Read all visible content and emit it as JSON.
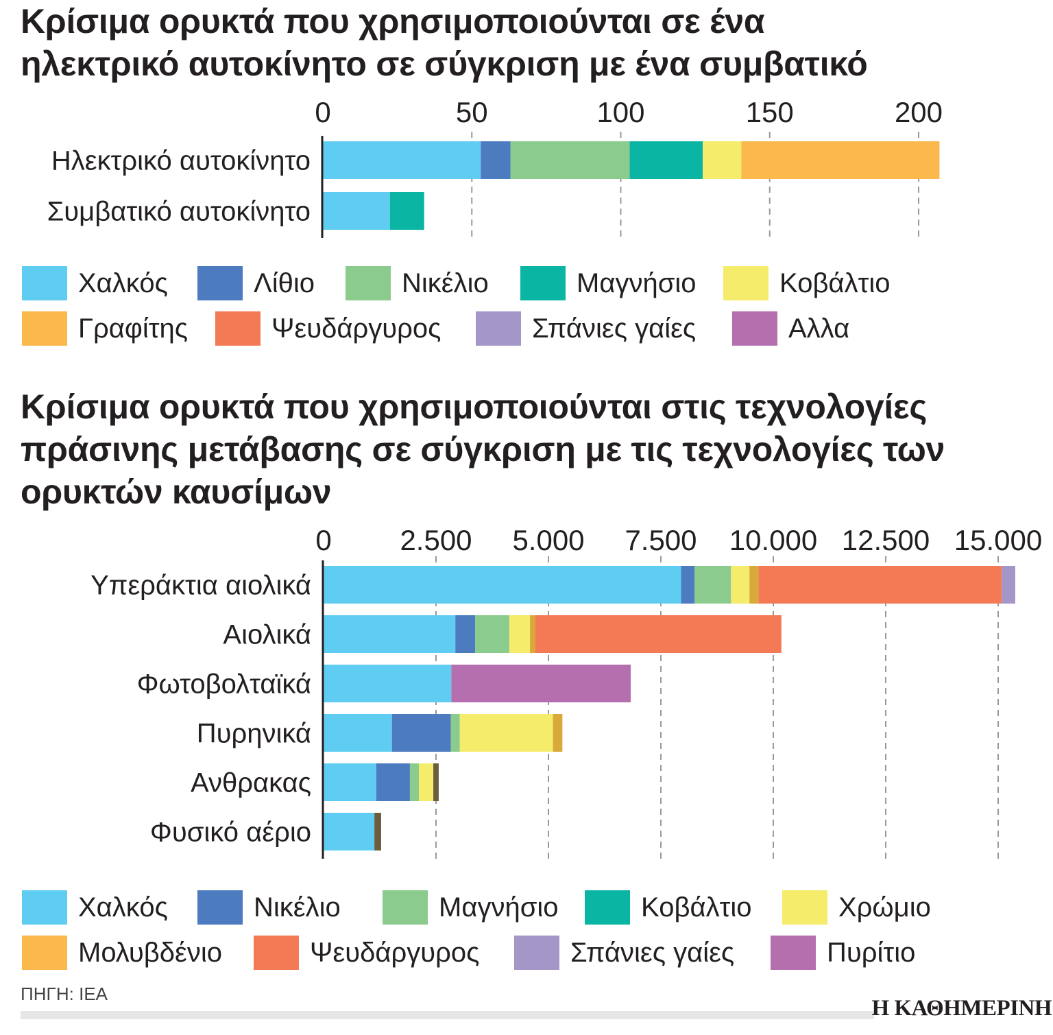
{
  "chart_data": [
    {
      "type": "bar",
      "orientation": "horizontal",
      "stacked": true,
      "title": "Κρίσιμα ορυκτά που χρησιμοποιούνται σε ένα ηλεκτρικό αυτοκίνητο σε σύγκριση με ένα συμβατικό",
      "title_lines": [
        "Κρίσιμα ορυκτά που χρησιμοποιούνται σε ένα",
        "ηλεκτρικό αυτοκίνητο σε σύγκριση με ένα συμβατικό"
      ],
      "categories": [
        "Ηλεκτρικό αυτοκίνητο",
        "Συμβατικό αυτοκίνητο"
      ],
      "xlim": [
        0,
        200
      ],
      "ticks": [
        0,
        50,
        100,
        150,
        200
      ],
      "tick_labels": [
        "0",
        "50",
        "100",
        "150",
        "200"
      ],
      "grid": true,
      "legend": "bottom",
      "series": [
        {
          "name": "Χαλκός",
          "color": "#5fcdf2",
          "values": [
            53,
            22.5
          ]
        },
        {
          "name": "Λίθιο",
          "color": "#4c7bbf",
          "values": [
            10,
            0
          ]
        },
        {
          "name": "Νικέλιο",
          "color": "#8bcb8d",
          "values": [
            40,
            0
          ]
        },
        {
          "name": "Μαγνήσιο",
          "color": "#0bb5a4",
          "values": [
            24.5,
            11.5
          ]
        },
        {
          "name": "Κοβάλτιο",
          "color": "#f4ec6a",
          "values": [
            13,
            0
          ]
        },
        {
          "name": "Γραφίτης",
          "color": "#fbb84d",
          "values": [
            66.5,
            0
          ]
        },
        {
          "name": "Ψευδάργυρος",
          "color": "#f47a56",
          "values": [
            0,
            0
          ]
        },
        {
          "name": "Σπάνιες γαίες",
          "color": "#a596c8",
          "values": [
            0,
            0
          ]
        },
        {
          "name": "Αλλα",
          "color": "#b56faf",
          "values": [
            0,
            0
          ]
        }
      ]
    },
    {
      "type": "bar",
      "orientation": "horizontal",
      "stacked": true,
      "title": "Κρίσιμα ορυκτά που χρησιμοποιούνται στις τεχνολογίες πράσινης μετάβασης σε σύγκριση με τις τεχνολογίες των ορυκτών καυσίμων",
      "title_lines": [
        "Κρίσιμα ορυκτά που χρησιμοποιούνται στις τεχνολογίες",
        "πράσινης μετάβασης σε σύγκριση με τις τεχνολογίες των",
        "ορυκτών καυσίμων"
      ],
      "categories": [
        "Υπεράκτια αιολικά",
        "Αιολικά",
        "Φωτοβολταϊκά",
        "Πυρηνικά",
        "Ανθρακας",
        "Φυσικό αέριο"
      ],
      "xlim": [
        0,
        15000
      ],
      "ticks": [
        0,
        2500,
        5000,
        7500,
        10000,
        12500,
        15000
      ],
      "tick_labels": [
        "0",
        "2.500",
        "5.000",
        "7.500",
        "10.000",
        "12.500",
        "15.000"
      ],
      "grid": true,
      "legend": "bottom",
      "series": [
        {
          "name": "Χαλκός",
          "color": "#5fcdf2",
          "values": [
            7950,
            2930,
            2840,
            1520,
            1170,
            1130
          ]
        },
        {
          "name": "Νικέλιο",
          "color": "#4c7bbf",
          "values": [
            300,
            440,
            0,
            1310,
            750,
            0
          ]
        },
        {
          "name": "Μαγνήσιο",
          "color": "#8bcb8d",
          "values": [
            810,
            760,
            0,
            200,
            200,
            0
          ]
        },
        {
          "name": "Κοβάλτιο",
          "color": "#0bb5a4",
          "values": [
            0,
            0,
            0,
            0,
            0,
            0
          ]
        },
        {
          "name": "Χρώμιο",
          "color": "#f4ec6a",
          "values": [
            410,
            460,
            0,
            2070,
            320,
            0
          ]
        },
        {
          "name": "Μολυβδένιο",
          "color": "#fbb84d",
          "bar_color": "#d9a93a",
          "values": [
            200,
            120,
            0,
            210,
            0,
            0
          ]
        },
        {
          "name": "Ψευδάργυρος",
          "color": "#f47a56",
          "values": [
            5410,
            5470,
            0,
            0,
            0,
            0
          ]
        },
        {
          "name": "Σπάνιες γαίες",
          "color": "#a596c8",
          "values": [
            300,
            0,
            0,
            0,
            0,
            0
          ]
        },
        {
          "name": "Πυρίτιο",
          "color": "#b56faf",
          "values": [
            0,
            0,
            3990,
            0,
            0,
            0
          ]
        },
        {
          "name": "",
          "color": "#6b5e3e",
          "in_legend": false,
          "values": [
            0,
            0,
            0,
            0,
            120,
            150
          ]
        }
      ]
    }
  ],
  "footer": {
    "source": "ΠΗΓΗ: IEA",
    "logo": "Η ΚΑΘΗΜΕΡΙΝΗ"
  }
}
